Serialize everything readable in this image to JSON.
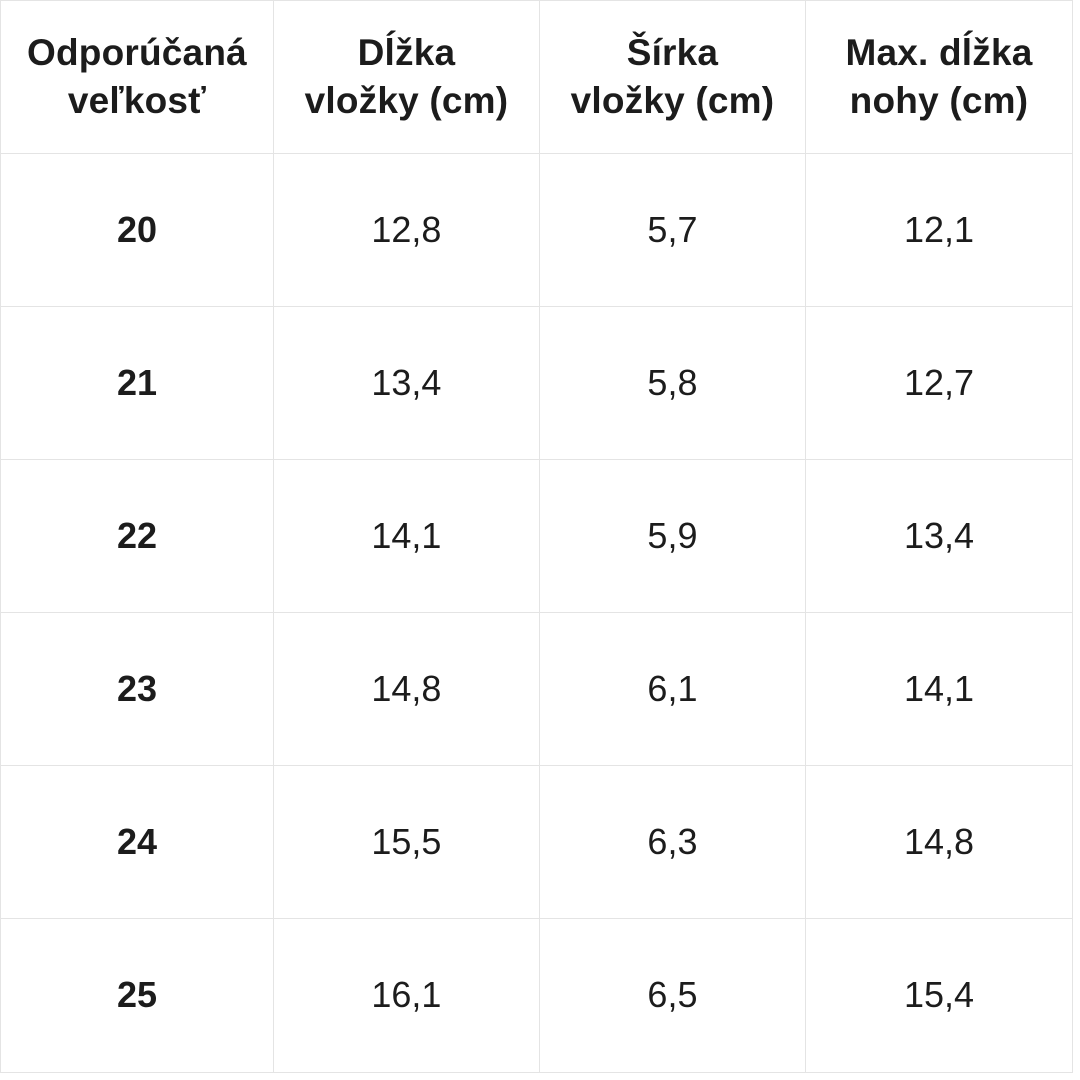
{
  "chart_data": {
    "type": "table",
    "columns": [
      "Odporúčaná veľkosť",
      "Dĺžka vložky (cm)",
      "Šírka vložky (cm)",
      "Max. dĺžka nohy (cm)"
    ],
    "rows": [
      [
        "20",
        "12,8",
        "5,7",
        "12,1"
      ],
      [
        "21",
        "13,4",
        "5,8",
        "12,7"
      ],
      [
        "22",
        "14,1",
        "5,9",
        "13,4"
      ],
      [
        "23",
        "14,8",
        "6,1",
        "14,1"
      ],
      [
        "24",
        "15,5",
        "6,3",
        "14,8"
      ],
      [
        "25",
        "16,1",
        "6,5",
        "15,4"
      ]
    ],
    "layout_hints": {
      "header_row_bold": true,
      "first_column_bold": true,
      "grid": "on"
    }
  },
  "colors": {
    "background": "#ffffff",
    "border": "#e4e4e4",
    "text": "#1c1c1c"
  }
}
